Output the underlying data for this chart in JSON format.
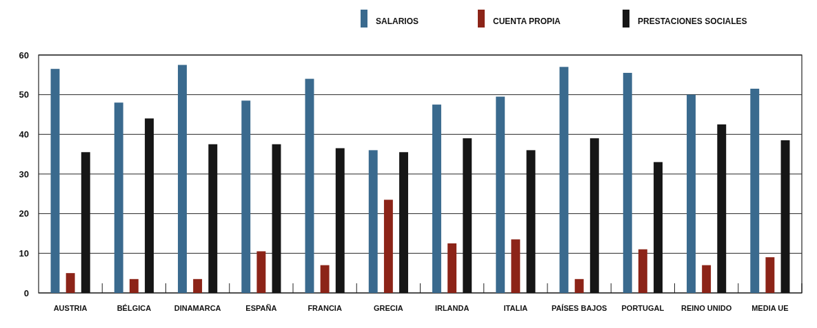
{
  "chart_data": {
    "type": "bar",
    "categories": [
      "AUSTRIA",
      "BÉLGICA",
      "DINAMARCA",
      "ESPAÑA",
      "FRANCIA",
      "GRECIA",
      "IRLANDA",
      "ITALIA",
      "PAÍSES BAJOS",
      "PORTUGAL",
      "REINO UNIDO",
      "MEDIA UE"
    ],
    "series": [
      {
        "name": "SALARIOS",
        "color": "#3a6a8e",
        "values": [
          56.5,
          48,
          57.5,
          48.5,
          54,
          36,
          47.5,
          49.5,
          57,
          55.5,
          50,
          51.5
        ]
      },
      {
        "name": "CUENTA PROPIA",
        "color": "#8c2418",
        "values": [
          5,
          3.5,
          3.5,
          10.5,
          7,
          23.5,
          12.5,
          13.5,
          3.5,
          11,
          7,
          9
        ]
      },
      {
        "name": "PRESTACIONES SOCIALES",
        "color": "#161616",
        "values": [
          35.5,
          44,
          37.5,
          37.5,
          36.5,
          35.5,
          39,
          36,
          39,
          33,
          42.5,
          38.5
        ]
      }
    ],
    "ylim": [
      0,
      60
    ],
    "yticks": [
      0,
      10,
      20,
      30,
      40,
      50,
      60
    ],
    "grid": "y",
    "legend": "top right"
  }
}
